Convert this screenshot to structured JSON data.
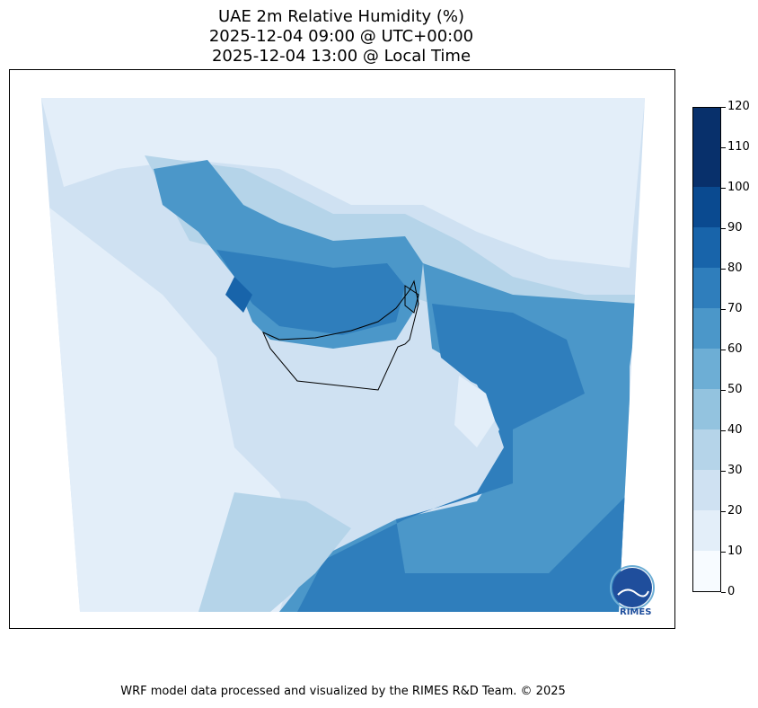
{
  "title": {
    "line1": "UAE 2m Relative Humidity (%)",
    "line2": "2025-12-04 09:00 @ UTC+00:00",
    "line3": "2025-12-04 13:00 @ Local Time"
  },
  "colorbar": {
    "levels": [
      0,
      10,
      20,
      30,
      40,
      50,
      60,
      70,
      80,
      90,
      100,
      110,
      120
    ],
    "tick_labels": [
      "0",
      "10",
      "20",
      "30",
      "40",
      "50",
      "60",
      "70",
      "80",
      "90",
      "100",
      "110",
      "120"
    ],
    "colors": [
      "#f7fbff",
      "#e3eef9",
      "#cfe1f2",
      "#b5d4e9",
      "#93c3df",
      "#6daed5",
      "#4b97c9",
      "#2f7ebc",
      "#1864aa",
      "#0a4a90",
      "#08306b",
      "#08306b"
    ]
  },
  "logo": {
    "text": "RIMES"
  },
  "footer": {
    "text": "WRF model data processed and visualized by the RIMES R&D Team. © 2025"
  }
}
